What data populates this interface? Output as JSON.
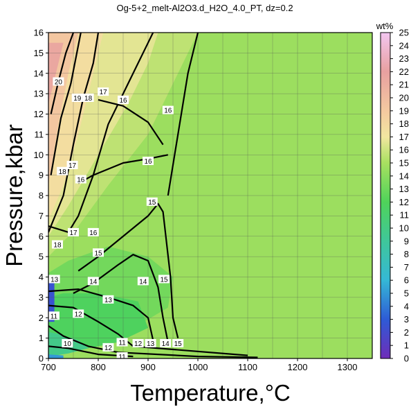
{
  "chart_data": {
    "type": "contour",
    "title": "Og-5+2_melt-Al2O3.d_H2O_4.0_PT, dz=0.2",
    "xlabel": "Temperature,°C",
    "ylabel": "Pressure,kbar",
    "xlim": [
      700,
      1350
    ],
    "ylim": [
      0,
      16
    ],
    "xticks": [
      700,
      800,
      900,
      1000,
      1100,
      1200,
      1300
    ],
    "yticks": [
      0,
      1,
      2,
      3,
      4,
      5,
      6,
      7,
      8,
      9,
      10,
      11,
      12,
      13,
      14,
      15,
      16
    ],
    "grid": true,
    "colorbar": {
      "label": "wt%",
      "range": [
        0,
        25
      ],
      "ticks": [
        0,
        1,
        2,
        3,
        4,
        5,
        6,
        7,
        8,
        9,
        10,
        11,
        12,
        13,
        14,
        15,
        16,
        17,
        18,
        19,
        20,
        21,
        22,
        23,
        24,
        25
      ],
      "stops": [
        {
          "v": 0,
          "color": "#6f2db8"
        },
        {
          "v": 3,
          "color": "#2e5bd6"
        },
        {
          "v": 6,
          "color": "#35b8d6"
        },
        {
          "v": 9,
          "color": "#3fc79a"
        },
        {
          "v": 12,
          "color": "#4fd35a"
        },
        {
          "v": 15,
          "color": "#a8e060"
        },
        {
          "v": 17,
          "color": "#f2e6a0"
        },
        {
          "v": 19,
          "color": "#f4c9a0"
        },
        {
          "v": 22,
          "color": "#e8a0a0"
        },
        {
          "v": 25,
          "color": "#f3c6f0"
        }
      ]
    },
    "regions": [
      {
        "v": 14.6,
        "points": [
          [
            700,
            0
          ],
          [
            1350,
            0
          ],
          [
            1350,
            16
          ],
          [
            700,
            16
          ]
        ]
      },
      {
        "v": 15.6,
        "points": [
          [
            700,
            5
          ],
          [
            760,
            6.5
          ],
          [
            820,
            8.5
          ],
          [
            900,
            11
          ],
          [
            960,
            14
          ],
          [
            1000,
            16
          ],
          [
            700,
            16
          ]
        ]
      },
      {
        "v": 16.6,
        "points": [
          [
            700,
            6
          ],
          [
            740,
            7.5
          ],
          [
            800,
            10
          ],
          [
            860,
            12.5
          ],
          [
            900,
            14.5
          ],
          [
            920,
            16
          ],
          [
            700,
            16
          ]
        ]
      },
      {
        "v": 17.6,
        "points": [
          [
            700,
            6.8
          ],
          [
            730,
            8.5
          ],
          [
            760,
            11
          ],
          [
            790,
            14
          ],
          [
            810,
            16
          ],
          [
            700,
            16
          ]
        ]
      },
      {
        "v": 19.2,
        "points": [
          [
            700,
            8.5
          ],
          [
            720,
            11.5
          ],
          [
            740,
            14
          ],
          [
            760,
            16
          ],
          [
            700,
            16
          ]
        ]
      },
      {
        "v": 21.5,
        "points": [
          [
            700,
            12.5
          ],
          [
            715,
            14
          ],
          [
            730,
            15.5
          ],
          [
            700,
            15.5
          ]
        ]
      },
      {
        "v": 13.2,
        "points": [
          [
            700,
            0.3
          ],
          [
            760,
            0.6
          ],
          [
            850,
            1.2
          ],
          [
            940,
            2.5
          ],
          [
            950,
            4
          ],
          [
            900,
            5
          ],
          [
            820,
            5.5
          ],
          [
            740,
            4.8
          ],
          [
            700,
            4.2
          ]
        ]
      },
      {
        "v": 11.8,
        "points": [
          [
            700,
            0.2
          ],
          [
            760,
            0.4
          ],
          [
            840,
            0.8
          ],
          [
            900,
            1.5
          ],
          [
            880,
            2.8
          ],
          [
            800,
            3.2
          ],
          [
            730,
            3.2
          ],
          [
            700,
            3
          ]
        ]
      },
      {
        "v": 9.8,
        "points": [
          [
            700,
            0.1
          ],
          [
            740,
            0.25
          ],
          [
            780,
            0.5
          ],
          [
            760,
            0.9
          ],
          [
            720,
            1.2
          ],
          [
            700,
            1.3
          ]
        ]
      },
      {
        "v": 2.5,
        "points": [
          [
            700,
            1.8
          ],
          [
            712,
            1.8
          ],
          [
            712,
            3.8
          ],
          [
            700,
            3.8
          ]
        ]
      },
      {
        "v": 5.0,
        "points": [
          [
            700,
            0
          ],
          [
            730,
            0
          ],
          [
            730,
            0.15
          ],
          [
            700,
            0.2
          ]
        ]
      }
    ],
    "contours": [
      {
        "level": 16,
        "bold": true,
        "points": [
          [
            760,
            8.6
          ],
          [
            790,
            9
          ],
          [
            850,
            9.6
          ],
          [
            900,
            9.8
          ],
          [
            940,
            10
          ]
        ]
      },
      {
        "level": 16,
        "bold": true,
        "points": [
          [
            800,
            12.7
          ],
          [
            850,
            12.4
          ],
          [
            900,
            11.6
          ],
          [
            930,
            10.5
          ]
        ]
      },
      {
        "level": 16,
        "bold": true,
        "points": [
          [
            940,
            8
          ],
          [
            960,
            11
          ],
          [
            980,
            14
          ],
          [
            1000,
            16
          ]
        ]
      },
      {
        "level": 17,
        "bold": true,
        "points": [
          [
            700,
            6.5
          ],
          [
            740,
            6.2
          ],
          [
            760,
            7
          ],
          [
            790,
            9
          ],
          [
            820,
            11.5
          ],
          [
            860,
            13.5
          ],
          [
            900,
            15.5
          ],
          [
            910,
            16
          ]
        ]
      },
      {
        "level": 18,
        "bold": true,
        "points": [
          [
            700,
            6.2
          ],
          [
            730,
            8
          ],
          [
            750,
            10.5
          ],
          [
            770,
            12.8
          ],
          [
            790,
            14.5
          ],
          [
            800,
            16
          ]
        ]
      },
      {
        "level": 19,
        "bold": true,
        "points": [
          [
            705,
            9
          ],
          [
            725,
            11.8
          ],
          [
            745,
            13.5
          ],
          [
            765,
            16
          ]
        ]
      },
      {
        "level": 20,
        "bold": true,
        "points": [
          [
            705,
            12
          ],
          [
            720,
            13.6
          ],
          [
            735,
            15
          ],
          [
            750,
            16
          ]
        ]
      },
      {
        "level": 15,
        "bold": true,
        "points": [
          [
            760,
            4.3
          ],
          [
            800,
            5
          ],
          [
            860,
            6.2
          ],
          [
            900,
            7
          ],
          [
            920,
            7.6
          ],
          [
            930,
            7.2
          ],
          [
            945,
            4
          ],
          [
            950,
            2
          ],
          [
            960,
            1
          ]
        ]
      },
      {
        "level": 14,
        "bold": true,
        "points": [
          [
            750,
            3.2
          ],
          [
            790,
            3.7
          ],
          [
            840,
            4.6
          ],
          [
            870,
            5.1
          ],
          [
            900,
            4.8
          ],
          [
            920,
            3.5
          ],
          [
            930,
            2
          ],
          [
            940,
            0.8
          ]
        ]
      },
      {
        "level": 13,
        "bold": true,
        "points": [
          [
            700,
            3.3
          ],
          [
            760,
            3.4
          ],
          [
            820,
            3
          ],
          [
            870,
            2.6
          ],
          [
            900,
            2
          ],
          [
            910,
            0.9
          ]
        ]
      },
      {
        "level": 12,
        "bold": true,
        "points": [
          [
            700,
            2.6
          ],
          [
            750,
            2.5
          ],
          [
            800,
            1.8
          ],
          [
            840,
            1.2
          ],
          [
            870,
            0.6
          ],
          [
            1100,
            0.15
          ]
        ]
      },
      {
        "level": 11,
        "bold": true,
        "points": [
          [
            700,
            1.6
          ],
          [
            730,
            1.1
          ],
          [
            780,
            0.6
          ],
          [
            840,
            0.3
          ],
          [
            1000,
            0.1
          ],
          [
            1120,
            0.05
          ]
        ]
      },
      {
        "level": 10,
        "bold": true,
        "points": [
          [
            700,
            0.6
          ],
          [
            740,
            0.5
          ],
          [
            800,
            0.2
          ],
          [
            870,
            0.1
          ]
        ]
      }
    ],
    "contour_labels": [
      {
        "text": "20",
        "x": 720,
        "y": 13.6
      },
      {
        "text": "19",
        "x": 758,
        "y": 12.8
      },
      {
        "text": "18",
        "x": 780,
        "y": 12.8
      },
      {
        "text": "17",
        "x": 810,
        "y": 13.1
      },
      {
        "text": "16",
        "x": 850,
        "y": 12.7
      },
      {
        "text": "16",
        "x": 940,
        "y": 12.2
      },
      {
        "text": "18",
        "x": 728,
        "y": 9.2
      },
      {
        "text": "17",
        "x": 748,
        "y": 9.5
      },
      {
        "text": "16",
        "x": 765,
        "y": 8.8
      },
      {
        "text": "16",
        "x": 900,
        "y": 9.7
      },
      {
        "text": "15",
        "x": 908,
        "y": 7.7
      },
      {
        "text": "17",
        "x": 750,
        "y": 6.2
      },
      {
        "text": "16",
        "x": 790,
        "y": 6.2
      },
      {
        "text": "18",
        "x": 718,
        "y": 5.6
      },
      {
        "text": "15",
        "x": 800,
        "y": 5.2
      },
      {
        "text": "14",
        "x": 790,
        "y": 3.8
      },
      {
        "text": "14",
        "x": 890,
        "y": 3.8
      },
      {
        "text": "15",
        "x": 932,
        "y": 3.9
      },
      {
        "text": "13",
        "x": 820,
        "y": 2.9
      },
      {
        "text": "12",
        "x": 760,
        "y": 2.2
      },
      {
        "text": "13",
        "x": 712,
        "y": 3.9
      },
      {
        "text": "11",
        "x": 711,
        "y": 2.1
      },
      {
        "text": "11",
        "x": 848,
        "y": 0.8
      },
      {
        "text": "12",
        "x": 880,
        "y": 0.75
      },
      {
        "text": "13",
        "x": 905,
        "y": 0.75
      },
      {
        "text": "14",
        "x": 935,
        "y": 0.75
      },
      {
        "text": "15",
        "x": 960,
        "y": 0.75
      },
      {
        "text": "12",
        "x": 820,
        "y": 0.55
      },
      {
        "text": "10",
        "x": 738,
        "y": 0.75
      },
      {
        "text": "11",
        "x": 848,
        "y": 0.1
      }
    ]
  }
}
